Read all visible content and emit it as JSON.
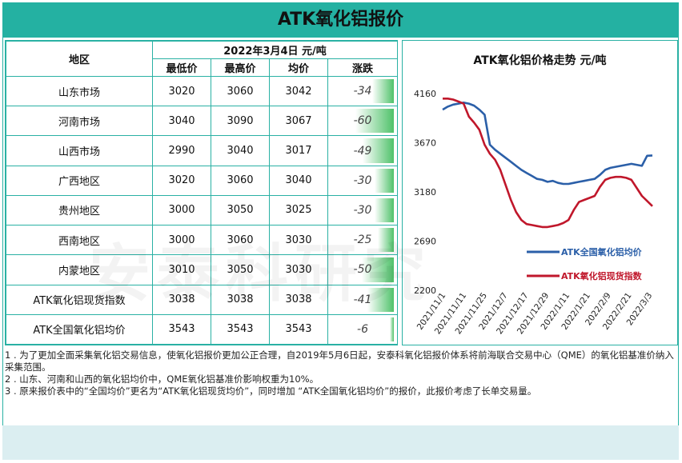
{
  "title": "ATK氧化铝报价",
  "table": {
    "region_header": "地区",
    "date_header": "2022年3月4日  元/吨",
    "columns": [
      "最低价",
      "最高价",
      "均价",
      "涨跌"
    ],
    "rows": [
      {
        "region": "山东市场",
        "low": "3020",
        "high": "3060",
        "avg": "3042",
        "change": "-34"
      },
      {
        "region": "河南市场",
        "low": "3040",
        "high": "3090",
        "avg": "3067",
        "change": "-60"
      },
      {
        "region": "山西市场",
        "low": "2990",
        "high": "3040",
        "avg": "3017",
        "change": "-49"
      },
      {
        "region": "广西地区",
        "low": "3020",
        "high": "3060",
        "avg": "3040",
        "change": "-30"
      },
      {
        "region": "贵州地区",
        "low": "3000",
        "high": "3050",
        "avg": "3025",
        "change": "-30"
      },
      {
        "region": "西南地区",
        "low": "3000",
        "high": "3060",
        "avg": "3030",
        "change": "-25"
      },
      {
        "region": "内蒙地区",
        "low": "3010",
        "high": "3050",
        "avg": "3030",
        "change": "-50"
      },
      {
        "region": "ATK氧化铝现货指数",
        "low": "3038",
        "high": "3038",
        "avg": "3038",
        "change": "-41"
      },
      {
        "region": "ATK全国氧化铝均价",
        "low": "3543",
        "high": "3543",
        "avg": "3543",
        "change": "-6"
      }
    ]
  },
  "chart_data": {
    "type": "line",
    "title": "ATK氧化铝价格走势  元/吨",
    "ylim": [
      2200,
      4160
    ],
    "yticks": [
      "4160",
      "3670",
      "3180",
      "2690",
      "2200"
    ],
    "x_tick_labels": [
      "2021/11/1",
      "2021/11/11",
      "2021/11/25",
      "2021/12/7",
      "2021/12/17",
      "2021/12/29",
      "2022/1/11",
      "2022/1/21",
      "2022/2/9",
      "2022/2/21",
      "2022/3/3"
    ],
    "legend_position": "right",
    "series": [
      {
        "name": "ATK全国氧化铝均价",
        "color": "#2b5fa8",
        "values": [
          4000,
          4030,
          4050,
          4060,
          4070,
          4060,
          4040,
          4000,
          3950,
          3650,
          3600,
          3560,
          3520,
          3480,
          3440,
          3400,
          3370,
          3340,
          3310,
          3300,
          3280,
          3290,
          3270,
          3260,
          3260,
          3270,
          3280,
          3290,
          3300,
          3310,
          3350,
          3400,
          3420,
          3430,
          3440,
          3450,
          3460,
          3450,
          3440,
          3540,
          3543
        ]
      },
      {
        "name": "ATK氧化铝现货指数",
        "color": "#c0172b",
        "values": [
          4110,
          4110,
          4100,
          4080,
          4060,
          3930,
          3870,
          3800,
          3650,
          3560,
          3500,
          3400,
          3250,
          3100,
          2980,
          2900,
          2860,
          2850,
          2840,
          2830,
          2830,
          2840,
          2850,
          2870,
          2900,
          3000,
          3080,
          3100,
          3120,
          3140,
          3230,
          3300,
          3320,
          3330,
          3330,
          3320,
          3300,
          3220,
          3140,
          3090,
          3038
        ]
      }
    ]
  },
  "notes": [
    "1 . 为了更加全面采集氧化铝交易信息，使氧化铝报价更加公正合理，自2019年5月6日起，安泰科氧化铝报价体系将前海联合交易中心（QME）的氧化铝基准价纳入采集范围。",
    "2 . 山东、河南和山西的氧化铝均价中，QME氧化铝基准价影响权重为10%。",
    "3 . 原来报价表中的“全国均价”更名为“ATK氧化铝现货均价”，同时增加 “ATK全国氧化铝均价”的报价，此报价考虑了长单交易量。"
  ],
  "accent_color": "#24b1a2"
}
